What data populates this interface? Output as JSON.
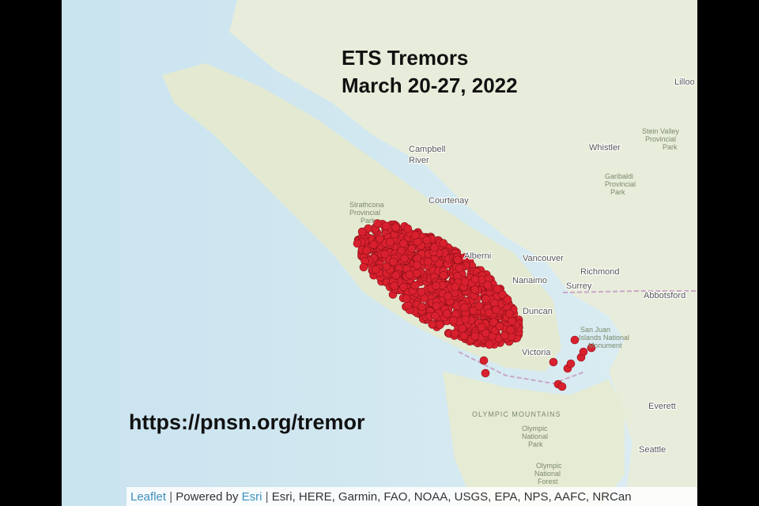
{
  "header": {
    "title": [
      "ETS Tremors",
      "March 20-27, 2022"
    ],
    "url": "https://pnsn.org/tremor"
  },
  "places": [
    {
      "lines": [
        "Campbell",
        "River"
      ]
    },
    {
      "lines": [
        "Courtenay"
      ]
    },
    {
      "lines": [
        "Strathcona",
        "Provincial",
        "Park"
      ]
    },
    {
      "lines": [
        "Alberni"
      ]
    },
    {
      "lines": [
        "Vancouver"
      ]
    },
    {
      "lines": [
        "Richmond"
      ]
    },
    {
      "lines": [
        "Nanaimo"
      ]
    },
    {
      "lines": [
        "Surrey"
      ]
    },
    {
      "lines": [
        "Abbotsford"
      ]
    },
    {
      "lines": [
        "Duncan"
      ]
    },
    {
      "lines": [
        "Victoria"
      ]
    },
    {
      "lines": [
        "San Juan",
        "Islands National",
        "Monument"
      ]
    },
    {
      "lines": [
        "Whistler"
      ]
    },
    {
      "lines": [
        "Garibaldi",
        "Provincial",
        "Park"
      ]
    },
    {
      "lines": [
        "Stein Valley",
        "Provincial",
        "Park"
      ]
    },
    {
      "lines": [
        "Lilloo"
      ]
    },
    {
      "lines": [
        "OLYMPIC MOUNTAINS"
      ]
    },
    {
      "lines": [
        "Olympic",
        "National",
        "Park"
      ]
    },
    {
      "lines": [
        "Olympic",
        "National",
        "Forest"
      ]
    },
    {
      "lines": [
        "Everett"
      ]
    },
    {
      "lines": [
        "Seattle"
      ]
    }
  ],
  "attribution": {
    "leaflet": "Leaflet",
    "powered": "Powered by",
    "esri": "Esri",
    "sources": "Esri, HERE, Garmin, FAO, NOAA, USGS, EPA, NPS, AAFC, NRCan"
  }
}
